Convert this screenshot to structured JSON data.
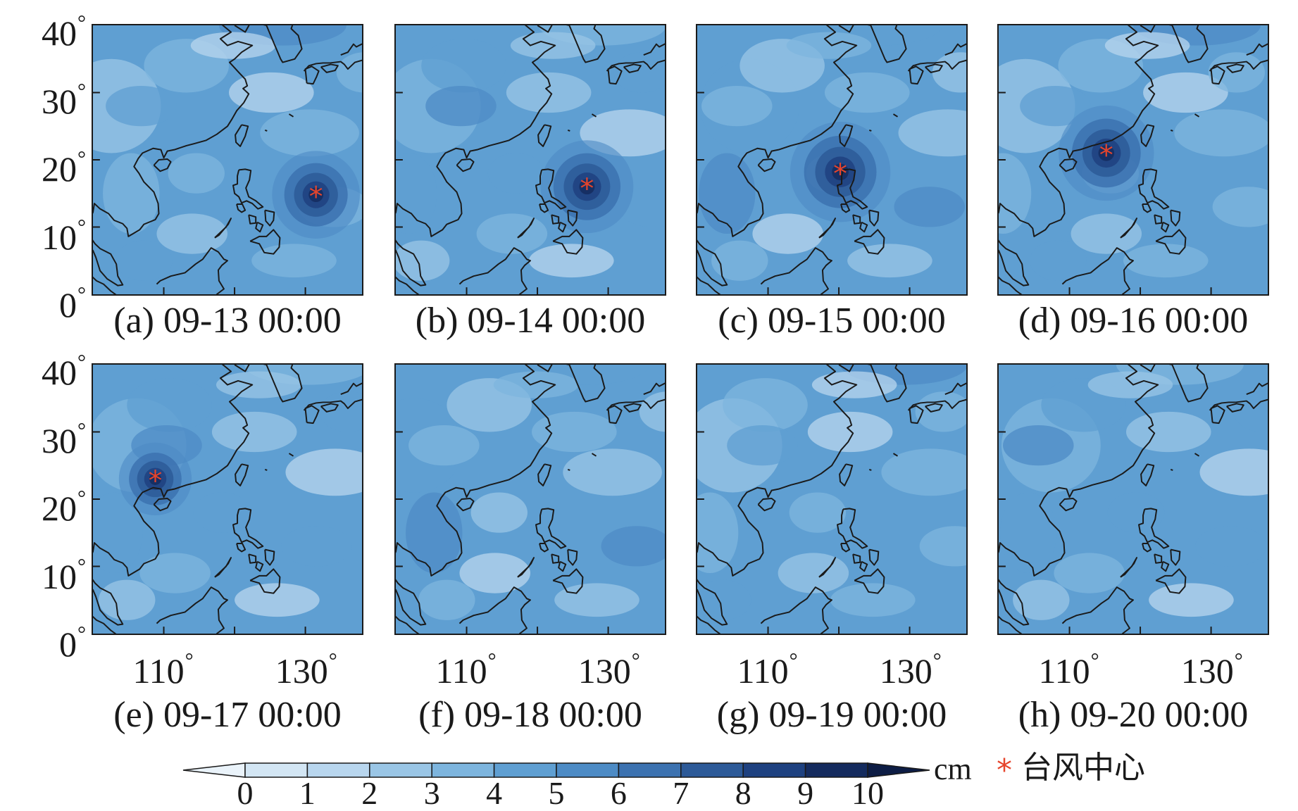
{
  "panels": [
    {
      "id": "a",
      "caption": "(a) 09-13 00:00",
      "center": [
        131.5,
        14.8
      ],
      "intensity": 0.75
    },
    {
      "id": "b",
      "caption": "(b) 09-14 00:00",
      "center": [
        127.0,
        16.0
      ],
      "intensity": 0.85
    },
    {
      "id": "c",
      "caption": "(c) 09-15 00:00",
      "center": [
        120.2,
        18.2
      ],
      "intensity": 1.0
    },
    {
      "id": "d",
      "caption": "(d) 09-16 00:00",
      "center": [
        115.2,
        21.0
      ],
      "intensity": 0.9
    },
    {
      "id": "e",
      "caption": "(e) 09-17 00:00",
      "center": [
        108.8,
        23.0
      ],
      "intensity": 0.45
    },
    {
      "id": "f",
      "caption": "(f) 09-18 00:00",
      "center": null,
      "intensity": 0
    },
    {
      "id": "g",
      "caption": "(g) 09-19 00:00",
      "center": null,
      "intensity": 0
    },
    {
      "id": "h",
      "caption": "(h) 09-20 00:00",
      "center": null,
      "intensity": 0
    }
  ],
  "extent": {
    "lon": [
      100,
      138
    ],
    "lat": [
      0,
      40
    ]
  },
  "lat_ticks": [
    "0",
    "10",
    "20",
    "30",
    "40"
  ],
  "lon_ticks": [
    "110",
    "130"
  ],
  "degree_symbol": "°",
  "colorbar": {
    "ticks": [
      "0",
      "1",
      "2",
      "3",
      "4",
      "5",
      "6",
      "7",
      "8",
      "9",
      "10"
    ],
    "unit": "cm",
    "colors": [
      "#eaf3fa",
      "#d3e6f4",
      "#b8d6ee",
      "#9ac6e6",
      "#7db5de",
      "#5f9fd2",
      "#4d8bc5",
      "#3c72b0",
      "#2d5a98",
      "#1e4180",
      "#142b5e",
      "#0d1d45"
    ]
  },
  "legend": {
    "symbol": "*",
    "symbol_color": "#e6452c",
    "label": "台风中心"
  }
}
